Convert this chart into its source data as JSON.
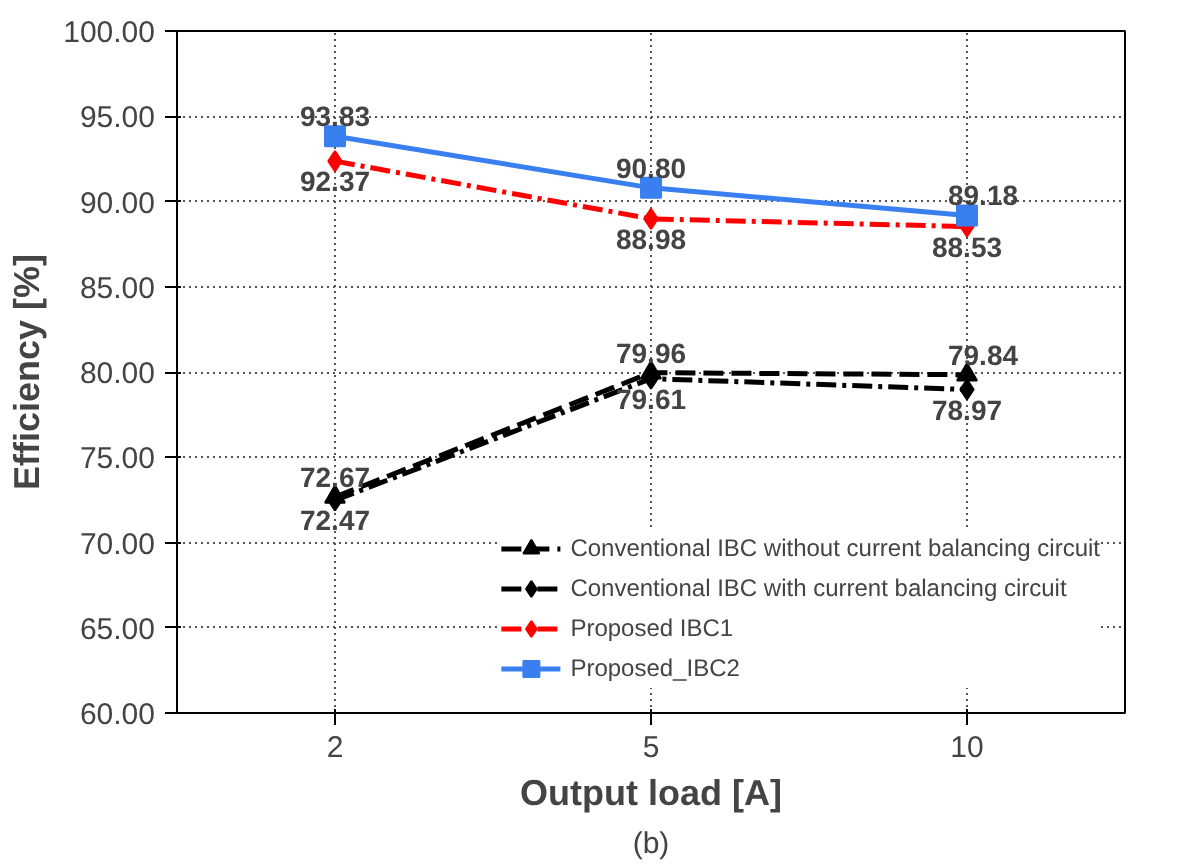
{
  "chart_data": {
    "type": "line",
    "xlabel": "Output load [A]",
    "ylabel": "Efficiency [%]",
    "categories": [
      "2",
      "5",
      "10"
    ],
    "ylim": [
      60,
      100
    ],
    "yticks": [
      {
        "value": 60,
        "label": "60.00"
      },
      {
        "value": 65,
        "label": "65.00"
      },
      {
        "value": 70,
        "label": "70.00"
      },
      {
        "value": 75,
        "label": "75.00"
      },
      {
        "value": 80,
        "label": "80.00"
      },
      {
        "value": 85,
        "label": "85.00"
      },
      {
        "value": 90,
        "label": "90.00"
      },
      {
        "value": 95,
        "label": "95.00"
      },
      {
        "value": 100,
        "label": "100.00"
      }
    ],
    "grid": true,
    "legend": "bottom right",
    "series": [
      {
        "name": "Conventional IBC without current balancing circuit",
        "color": "#000000",
        "values": [
          72.67,
          79.96,
          79.84
        ],
        "value_labels": [
          "72.67",
          "79.96",
          "79.84"
        ],
        "marker": "triangle",
        "line_style": "dashed"
      },
      {
        "name": "Conventional IBC with current balancing circuit",
        "color": "#000000",
        "values": [
          72.47,
          79.61,
          78.97
        ],
        "value_labels": [
          "72.47",
          "79.61",
          "78.97"
        ],
        "marker": "diamond",
        "line_style": "dashdot"
      },
      {
        "name": "Proposed IBC1",
        "color": "#ff0000",
        "values": [
          92.37,
          88.98,
          88.53
        ],
        "value_labels": [
          "92.37",
          "88.98",
          "88.53"
        ],
        "marker": "diamond",
        "line_style": "dashdot"
      },
      {
        "name": "Proposed_IBC2",
        "color": "#3a7ff0",
        "values": [
          93.83,
          90.8,
          89.18
        ],
        "value_labels": [
          "93.83",
          "90.80",
          "89.18"
        ],
        "marker": "square",
        "line_style": "solid"
      }
    ],
    "annotations": [
      "(b)"
    ]
  }
}
